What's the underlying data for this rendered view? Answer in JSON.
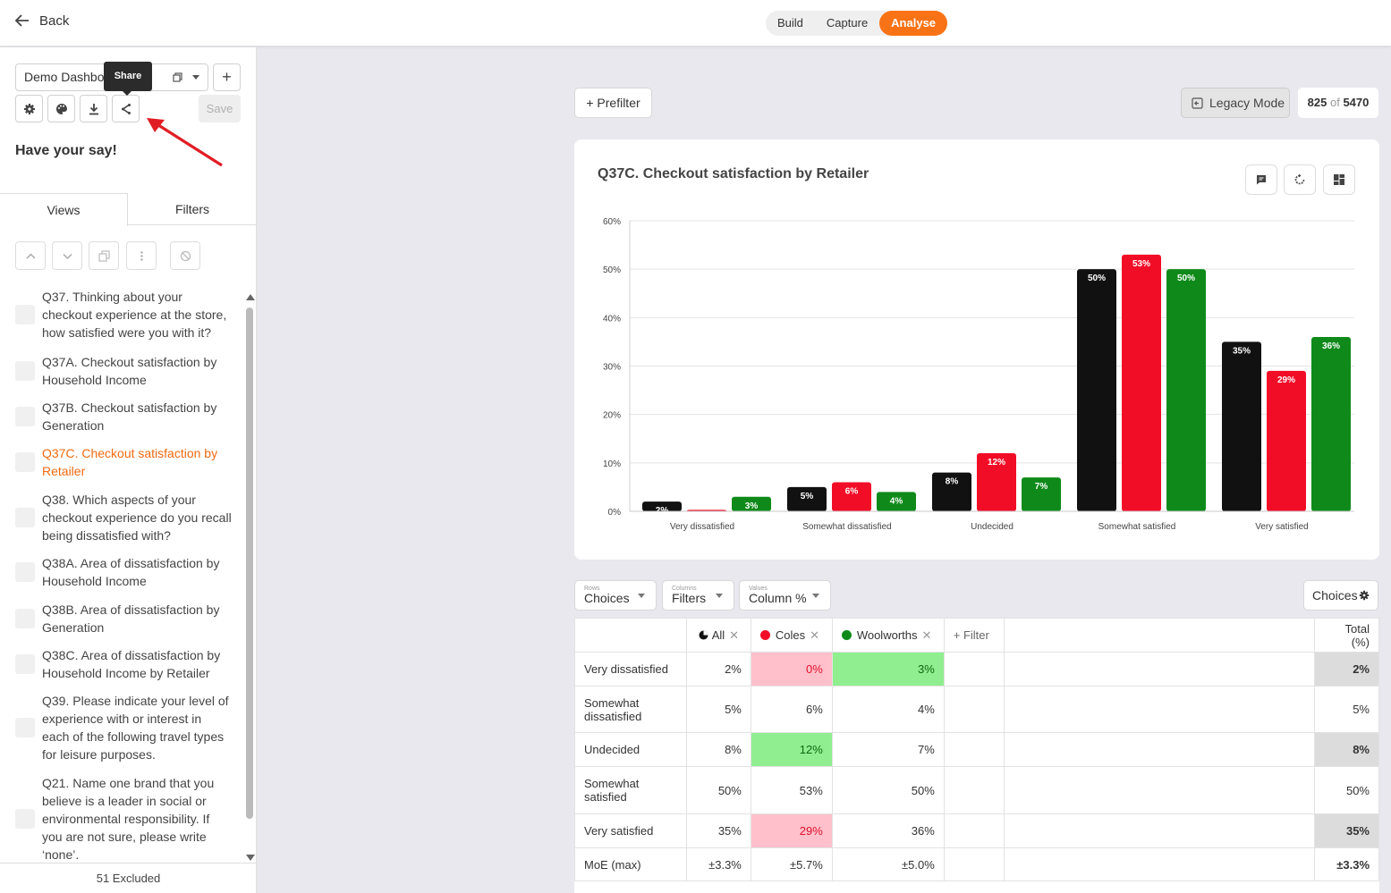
{
  "topbar": {
    "back_label": "Back",
    "modes": [
      "Build",
      "Capture",
      "Analyse"
    ],
    "active_mode": "Analyse"
  },
  "sidebar": {
    "dashboard_name": "Demo Dashboa",
    "add_label": "+",
    "tooltip": "Share",
    "save_label": "Save",
    "dashboard_title": "Have your say!",
    "tabs": [
      "Views",
      "Filters"
    ],
    "views": [
      {
        "label": "Q37. Thinking about your checkout experience at the store, how satisfied were you with it?",
        "active": false
      },
      {
        "label": "Q37A. Checkout satisfaction by Household Income",
        "active": false
      },
      {
        "label": "Q37B. Checkout satisfaction by Generation",
        "active": false
      },
      {
        "label": "Q37C. Checkout satisfaction by Retailer",
        "active": true
      },
      {
        "label": "Q38. Which aspects of your checkout experience do you recall being dissatisfied with?",
        "active": false
      },
      {
        "label": "Q38A. Area of dissatisfaction by Household Income",
        "active": false
      },
      {
        "label": "Q38B. Area of dissatisfaction by Generation",
        "active": false
      },
      {
        "label": "Q38C. Area of dissatisfaction by Household Income by Retailer",
        "active": false
      },
      {
        "label": "Q39. Please indicate your level of experience with or interest in each of the following travel types for leisure purposes.",
        "active": false
      },
      {
        "label": "Q21. Name one brand that you believe is a leader in social or environmental responsibility. If you are not sure, please write ‘none’.",
        "active": false
      }
    ],
    "excluded": "51 Excluded"
  },
  "main": {
    "prefilter_label": "+ Prefilter",
    "legacy_label": "Legacy Mode",
    "count_n": "825",
    "count_of": "of",
    "count_total": "5470"
  },
  "chart_data": {
    "type": "bar",
    "title": "Q37C. Checkout satisfaction by Retailer",
    "categories": [
      "Very dissatisfied",
      "Somewhat dissatisfied",
      "Undecided",
      "Somewhat satisfied",
      "Very satisfied"
    ],
    "series": [
      {
        "name": "All",
        "color": "#111111",
        "values": [
          2,
          5,
          8,
          50,
          35
        ],
        "labels": [
          "2%",
          "5%",
          "8%",
          "50%",
          "35%"
        ]
      },
      {
        "name": "Coles",
        "color": "#f20d27",
        "values": [
          0.3,
          6,
          12,
          53,
          29
        ],
        "labels": [
          "",
          "6%",
          "12%",
          "53%",
          "29%"
        ]
      },
      {
        "name": "Woolworths",
        "color": "#0f8a1a",
        "values": [
          3,
          4,
          7,
          50,
          36
        ],
        "labels": [
          "3%",
          "4%",
          "7%",
          "50%",
          "36%"
        ]
      }
    ],
    "yticks": [
      "0%",
      "10%",
      "20%",
      "30%",
      "40%",
      "50%",
      "60%"
    ],
    "ylim": [
      0,
      60
    ],
    "grid": true
  },
  "table": {
    "controls": [
      {
        "small": "Rows",
        "value": "Choices"
      },
      {
        "small": "Columns",
        "value": "Filters"
      },
      {
        "small": "Values",
        "value": "Column %"
      }
    ],
    "choices_button": "Choices",
    "columns": [
      {
        "label": "All",
        "color": "#111111"
      },
      {
        "label": "Coles",
        "color": "#f20d27"
      },
      {
        "label": "Woolworths",
        "color": "#0f8a1a"
      }
    ],
    "add_filter": "+ Filter",
    "total_header": "Total (%)",
    "rows": [
      {
        "label": "Very dissatisfied",
        "cells": [
          "2%",
          "0%",
          "3%"
        ],
        "hl": [
          "",
          "red",
          "green"
        ],
        "total": "2%",
        "total_hl": true
      },
      {
        "label": "Somewhat dissatisfied",
        "cells": [
          "5%",
          "6%",
          "4%"
        ],
        "hl": [
          "",
          "",
          ""
        ],
        "total": "5%",
        "total_hl": false
      },
      {
        "label": "Undecided",
        "cells": [
          "8%",
          "12%",
          "7%"
        ],
        "hl": [
          "",
          "green",
          ""
        ],
        "total": "8%",
        "total_hl": true
      },
      {
        "label": "Somewhat satisfied",
        "cells": [
          "50%",
          "53%",
          "50%"
        ],
        "hl": [
          "",
          "",
          ""
        ],
        "total": "50%",
        "total_hl": false
      },
      {
        "label": "Very satisfied",
        "cells": [
          "35%",
          "29%",
          "36%"
        ],
        "hl": [
          "",
          "red",
          ""
        ],
        "total": "35%",
        "total_hl": true
      },
      {
        "label": "MoE (max)",
        "cells": [
          "±3.3%",
          "±5.7%",
          "±5.0%"
        ],
        "hl": [
          "",
          "",
          ""
        ],
        "total": "±3.3%",
        "total_hl": false
      }
    ]
  }
}
